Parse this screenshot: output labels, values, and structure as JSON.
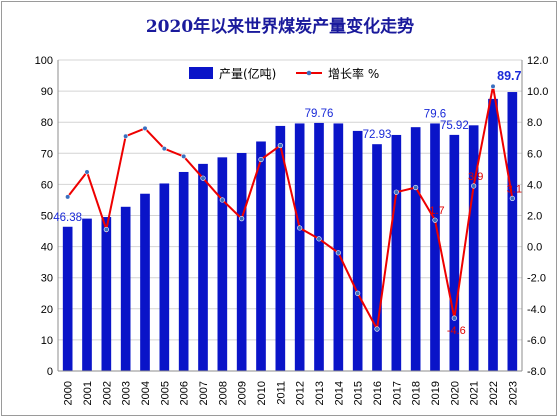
{
  "chart_data": {
    "type": "bar",
    "title": "2020年以来世界煤炭产量变化走势",
    "categories": [
      "2000",
      "2001",
      "2002",
      "2003",
      "2004",
      "2005",
      "2006",
      "2007",
      "2008",
      "2009",
      "2010",
      "2011",
      "2012",
      "2013",
      "2014",
      "2015",
      "2016",
      "2017",
      "2018",
      "2019",
      "2020",
      "2021",
      "2022",
      "2023"
    ],
    "series": [
      {
        "name": "产量(亿吨)",
        "type": "bar",
        "axis": "left",
        "color": "#0a14c8",
        "values": [
          46.38,
          49,
          49.5,
          52.8,
          57,
          60.3,
          64,
          66.6,
          68.7,
          70.1,
          73.8,
          78.8,
          79.6,
          79.76,
          79.6,
          77.2,
          72.93,
          75.9,
          78.4,
          79.6,
          75.92,
          79,
          87.5,
          89.7
        ]
      },
      {
        "name": "增长率 %",
        "type": "line",
        "axis": "right",
        "color": "#ee0000",
        "values": [
          3.2,
          4.8,
          1.1,
          7.1,
          7.6,
          6.3,
          5.8,
          4.4,
          3.0,
          1.8,
          5.6,
          6.5,
          1.2,
          0.5,
          -0.4,
          -3.0,
          -5.3,
          3.5,
          3.8,
          1.7,
          -4.6,
          3.9,
          10.3,
          3.1
        ]
      }
    ],
    "bar_data_labels": [
      {
        "index": 0,
        "text": "46.38"
      },
      {
        "index": 13,
        "text": "79.76"
      },
      {
        "index": 16,
        "text": "72.93"
      },
      {
        "index": 19,
        "text": "79.6"
      },
      {
        "index": 20,
        "text": "75.92"
      },
      {
        "index": 23,
        "text": "89.7"
      }
    ],
    "line_data_labels": [
      {
        "index": 19,
        "text": "1.7"
      },
      {
        "index": 20,
        "text": "-4.6"
      },
      {
        "index": 21,
        "text": "3.9"
      },
      {
        "index": 23,
        "text": "3.1"
      }
    ],
    "y_left": {
      "min": 0,
      "max": 100,
      "step": 10,
      "ticks": [
        "0",
        "10",
        "20",
        "30",
        "40",
        "50",
        "60",
        "70",
        "80",
        "90",
        "100"
      ]
    },
    "y_right": {
      "min": -8,
      "max": 12,
      "step": 2,
      "ticks": [
        "-8.0",
        "-6.0",
        "-4.0",
        "-2.0",
        "0.0",
        "2.0",
        "4.0",
        "6.0",
        "8.0",
        "10.0",
        "12.0"
      ]
    },
    "grid": true,
    "legend": "top-center"
  }
}
